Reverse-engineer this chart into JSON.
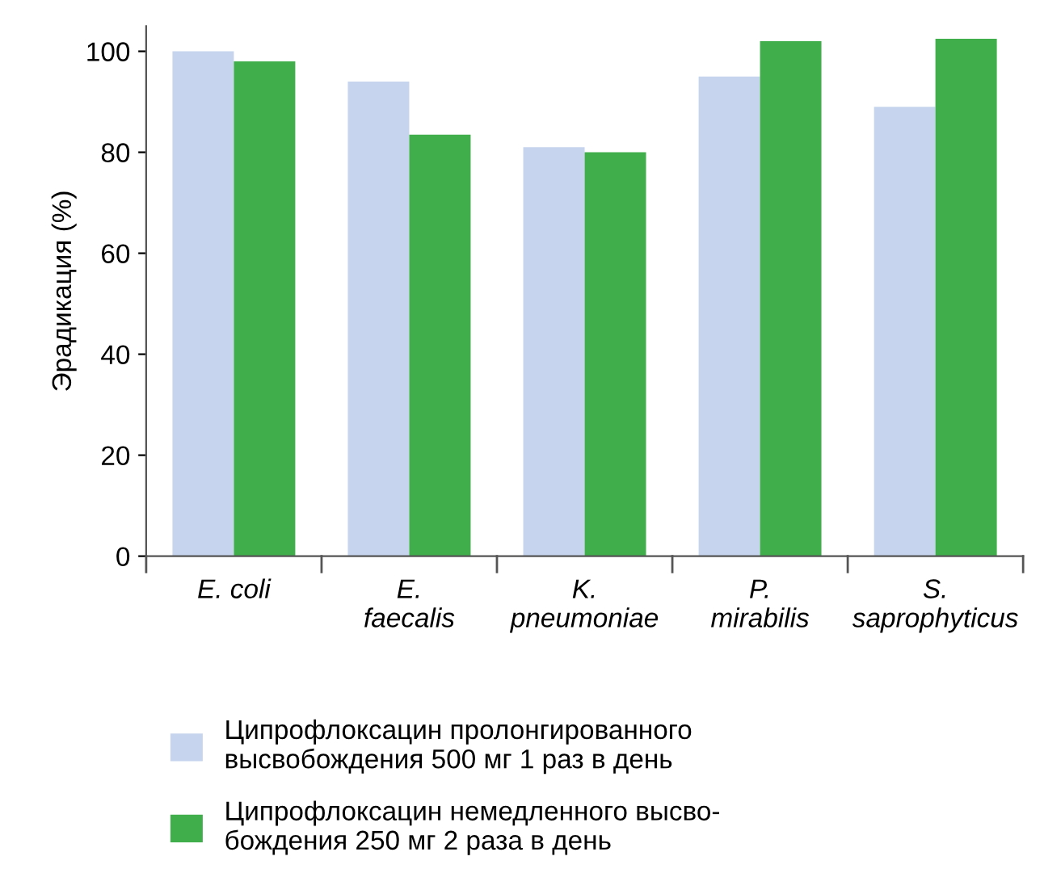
{
  "chart_data": {
    "type": "bar",
    "ylabel": "Эрадикация (%)",
    "categories": [
      "E. coli",
      "E.\nfaecalis",
      "K.\npneumoniae",
      "P.\nmirabilis",
      "S.\nsaprophyticus"
    ],
    "series": [
      {
        "name": "Ципрофлоксацин пролонгированного\nвысвобождения 500 мг 1 раз в день",
        "color": "#c6d4ee",
        "values": [
          100,
          94,
          81,
          95,
          89
        ]
      },
      {
        "name": "Ципрофлоксацин немедленного высво-\nбождения 250 мг 2 раза в день",
        "color": "#3fae4b",
        "values": [
          98,
          83.5,
          80,
          102,
          102.5
        ]
      }
    ],
    "ylim": [
      0,
      105
    ],
    "yticks": [
      0,
      20,
      40,
      60,
      80,
      100
    ],
    "grid": false,
    "legend": "bottom"
  }
}
